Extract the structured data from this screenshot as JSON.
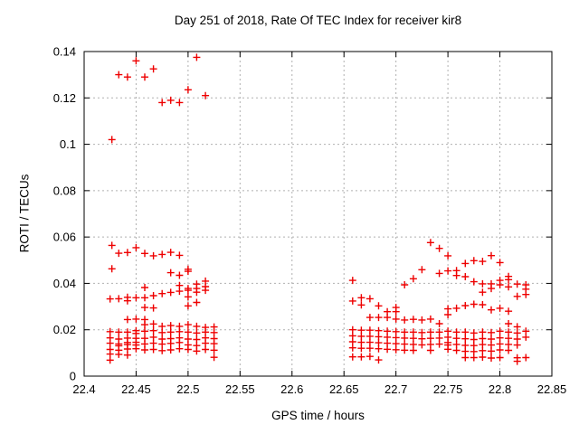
{
  "chart_data": {
    "type": "scatter",
    "title": "Day 251 of 2018, Rate Of TEC Index for receiver kir8",
    "xlabel": "GPS time / hours",
    "ylabel": "ROTI / TECUs",
    "xlim": [
      22.4,
      22.85
    ],
    "ylim": [
      0,
      0.14
    ],
    "grid": true,
    "legend": "none",
    "marker": "plus",
    "marker_color": "#ee0000",
    "x_ticks": [
      {
        "v": 22.4,
        "label": "22.4"
      },
      {
        "v": 22.45,
        "label": "22.45"
      },
      {
        "v": 22.5,
        "label": "22.5"
      },
      {
        "v": 22.55,
        "label": "22.55"
      },
      {
        "v": 22.6,
        "label": "22.6"
      },
      {
        "v": 22.65,
        "label": "22.65"
      },
      {
        "v": 22.7,
        "label": "22.7"
      },
      {
        "v": 22.75,
        "label": "22.75"
      },
      {
        "v": 22.8,
        "label": "22.8"
      },
      {
        "v": 22.85,
        "label": "22.85"
      }
    ],
    "y_ticks": [
      {
        "v": 0,
        "label": "0"
      },
      {
        "v": 0.02,
        "label": "0.02"
      },
      {
        "v": 0.04,
        "label": "0.04"
      },
      {
        "v": 0.06,
        "label": "0.06"
      },
      {
        "v": 0.08,
        "label": "0.08"
      },
      {
        "v": 0.1,
        "label": "0.1"
      },
      {
        "v": 0.12,
        "label": "0.12"
      },
      {
        "v": 0.14,
        "label": "0.14"
      }
    ],
    "series": [
      {
        "name": "ROTI",
        "points": [
          [
            22.425,
            0.0333
          ],
          [
            22.425,
            0.0192
          ],
          [
            22.425,
            0.0165
          ],
          [
            22.425,
            0.0142
          ],
          [
            22.425,
            0.0115
          ],
          [
            22.425,
            0.0095
          ],
          [
            22.425,
            0.0069
          ],
          [
            22.4267,
            0.102
          ],
          [
            22.4267,
            0.0564
          ],
          [
            22.4267,
            0.0463
          ],
          [
            22.4333,
            0.13
          ],
          [
            22.4333,
            0.053
          ],
          [
            22.4333,
            0.0334
          ],
          [
            22.4333,
            0.019
          ],
          [
            22.4333,
            0.016
          ],
          [
            22.4333,
            0.0139
          ],
          [
            22.4333,
            0.0131
          ],
          [
            22.4333,
            0.0112
          ],
          [
            22.4333,
            0.0094
          ],
          [
            22.4417,
            0.129
          ],
          [
            22.4417,
            0.0533
          ],
          [
            22.4417,
            0.034
          ],
          [
            22.4417,
            0.0325
          ],
          [
            22.4417,
            0.0244
          ],
          [
            22.4417,
            0.019
          ],
          [
            22.4417,
            0.0164
          ],
          [
            22.4417,
            0.0145
          ],
          [
            22.4417,
            0.0136
          ],
          [
            22.4417,
            0.0117
          ],
          [
            22.4417,
            0.0091
          ],
          [
            22.45,
            0.136
          ],
          [
            22.45,
            0.0554
          ],
          [
            22.45,
            0.0338
          ],
          [
            22.45,
            0.0246
          ],
          [
            22.45,
            0.0196
          ],
          [
            22.45,
            0.0184
          ],
          [
            22.45,
            0.0163
          ],
          [
            22.45,
            0.0146
          ],
          [
            22.45,
            0.0134
          ],
          [
            22.45,
            0.0118
          ],
          [
            22.4583,
            0.129
          ],
          [
            22.4583,
            0.0529
          ],
          [
            22.4583,
            0.0382
          ],
          [
            22.4583,
            0.0338
          ],
          [
            22.4583,
            0.0296
          ],
          [
            22.4583,
            0.0244
          ],
          [
            22.4583,
            0.0222
          ],
          [
            22.4583,
            0.0194
          ],
          [
            22.4583,
            0.0163
          ],
          [
            22.4583,
            0.0139
          ],
          [
            22.4583,
            0.0113
          ],
          [
            22.4667,
            0.1325
          ],
          [
            22.4667,
            0.0519
          ],
          [
            22.4667,
            0.0347
          ],
          [
            22.4667,
            0.0294
          ],
          [
            22.4667,
            0.0225
          ],
          [
            22.4667,
            0.0196
          ],
          [
            22.4667,
            0.0168
          ],
          [
            22.4667,
            0.0142
          ],
          [
            22.4667,
            0.0115
          ],
          [
            22.475,
            0.118
          ],
          [
            22.475,
            0.0525
          ],
          [
            22.475,
            0.0356
          ],
          [
            22.475,
            0.0215
          ],
          [
            22.475,
            0.0188
          ],
          [
            22.475,
            0.016
          ],
          [
            22.475,
            0.0138
          ],
          [
            22.475,
            0.011
          ],
          [
            22.4833,
            0.119
          ],
          [
            22.4833,
            0.0534
          ],
          [
            22.4833,
            0.0446
          ],
          [
            22.4833,
            0.0361
          ],
          [
            22.4833,
            0.0218
          ],
          [
            22.4833,
            0.019
          ],
          [
            22.4833,
            0.0162
          ],
          [
            22.4833,
            0.0141
          ],
          [
            22.4833,
            0.0113
          ],
          [
            22.4917,
            0.118
          ],
          [
            22.4917,
            0.0521
          ],
          [
            22.4917,
            0.0435
          ],
          [
            22.4917,
            0.0391
          ],
          [
            22.4917,
            0.0366
          ],
          [
            22.4917,
            0.0215
          ],
          [
            22.4917,
            0.0192
          ],
          [
            22.4917,
            0.0165
          ],
          [
            22.4917,
            0.0145
          ],
          [
            22.4917,
            0.0118
          ],
          [
            22.5,
            0.1235
          ],
          [
            22.5,
            0.0461
          ],
          [
            22.5,
            0.0452
          ],
          [
            22.5,
            0.0378
          ],
          [
            22.5,
            0.037
          ],
          [
            22.5,
            0.0342
          ],
          [
            22.5,
            0.0303
          ],
          [
            22.5,
            0.0222
          ],
          [
            22.5,
            0.019
          ],
          [
            22.5,
            0.016
          ],
          [
            22.5,
            0.0135
          ],
          [
            22.5,
            0.0115
          ],
          [
            22.5083,
            0.1375
          ],
          [
            22.5083,
            0.0397
          ],
          [
            22.5083,
            0.0378
          ],
          [
            22.5083,
            0.0362
          ],
          [
            22.5083,
            0.0318
          ],
          [
            22.5083,
            0.0215
          ],
          [
            22.5083,
            0.0186
          ],
          [
            22.5083,
            0.0158
          ],
          [
            22.5083,
            0.0132
          ],
          [
            22.5083,
            0.0108
          ],
          [
            22.5167,
            0.121
          ],
          [
            22.5167,
            0.041
          ],
          [
            22.5167,
            0.0386
          ],
          [
            22.5167,
            0.037
          ],
          [
            22.5167,
            0.021
          ],
          [
            22.5167,
            0.019
          ],
          [
            22.5167,
            0.0165
          ],
          [
            22.5167,
            0.0142
          ],
          [
            22.5167,
            0.0115
          ],
          [
            22.525,
            0.0212
          ],
          [
            22.525,
            0.0188
          ],
          [
            22.525,
            0.0162
          ],
          [
            22.525,
            0.014
          ],
          [
            22.525,
            0.0112
          ],
          [
            22.525,
            0.0081
          ],
          [
            22.6583,
            0.0413
          ],
          [
            22.6583,
            0.0324
          ],
          [
            22.6583,
            0.02
          ],
          [
            22.6583,
            0.0174
          ],
          [
            22.6583,
            0.0148
          ],
          [
            22.6583,
            0.0122
          ],
          [
            22.6583,
            0.0083
          ],
          [
            22.6667,
            0.0338
          ],
          [
            22.6667,
            0.0307
          ],
          [
            22.6667,
            0.0198
          ],
          [
            22.6667,
            0.0172
          ],
          [
            22.6667,
            0.0146
          ],
          [
            22.6667,
            0.012
          ],
          [
            22.6667,
            0.0083
          ],
          [
            22.675,
            0.0334
          ],
          [
            22.675,
            0.0253
          ],
          [
            22.675,
            0.0198
          ],
          [
            22.675,
            0.0172
          ],
          [
            22.675,
            0.0146
          ],
          [
            22.675,
            0.012
          ],
          [
            22.675,
            0.0085
          ],
          [
            22.6833,
            0.0303
          ],
          [
            22.6833,
            0.0253
          ],
          [
            22.6833,
            0.0196
          ],
          [
            22.6833,
            0.017
          ],
          [
            22.6833,
            0.0144
          ],
          [
            22.6833,
            0.0118
          ],
          [
            22.6833,
            0.007
          ],
          [
            22.6917,
            0.0278
          ],
          [
            22.6917,
            0.0253
          ],
          [
            22.6917,
            0.0194
          ],
          [
            22.6917,
            0.0168
          ],
          [
            22.6917,
            0.0142
          ],
          [
            22.6917,
            0.0116
          ],
          [
            22.7,
            0.0296
          ],
          [
            22.7,
            0.0278
          ],
          [
            22.7,
            0.0246
          ],
          [
            22.7,
            0.0192
          ],
          [
            22.7,
            0.0166
          ],
          [
            22.7,
            0.014
          ],
          [
            22.7,
            0.0114
          ],
          [
            22.7083,
            0.0394
          ],
          [
            22.7083,
            0.0242
          ],
          [
            22.7083,
            0.019
          ],
          [
            22.7083,
            0.0164
          ],
          [
            22.7083,
            0.0138
          ],
          [
            22.7083,
            0.0112
          ],
          [
            22.7167,
            0.042
          ],
          [
            22.7167,
            0.0245
          ],
          [
            22.7167,
            0.019
          ],
          [
            22.7167,
            0.0163
          ],
          [
            22.7167,
            0.0137
          ],
          [
            22.7167,
            0.0111
          ],
          [
            22.725,
            0.0459
          ],
          [
            22.725,
            0.0242
          ],
          [
            22.725,
            0.0188
          ],
          [
            22.725,
            0.0161
          ],
          [
            22.725,
            0.0135
          ],
          [
            22.7333,
            0.0576
          ],
          [
            22.7333,
            0.0246
          ],
          [
            22.7333,
            0.019
          ],
          [
            22.7333,
            0.0163
          ],
          [
            22.7333,
            0.0137
          ],
          [
            22.7333,
            0.0111
          ],
          [
            22.7417,
            0.0551
          ],
          [
            22.7417,
            0.0443
          ],
          [
            22.7417,
            0.0226
          ],
          [
            22.7417,
            0.019
          ],
          [
            22.7417,
            0.0164
          ],
          [
            22.7417,
            0.0138
          ],
          [
            22.75,
            0.0519
          ],
          [
            22.75,
            0.0454
          ],
          [
            22.75,
            0.029
          ],
          [
            22.75,
            0.0265
          ],
          [
            22.75,
            0.0194
          ],
          [
            22.75,
            0.0168
          ],
          [
            22.75,
            0.0145
          ],
          [
            22.75,
            0.0134
          ],
          [
            22.75,
            0.0116
          ],
          [
            22.7583,
            0.0455
          ],
          [
            22.7583,
            0.0434
          ],
          [
            22.7583,
            0.0293
          ],
          [
            22.7583,
            0.019
          ],
          [
            22.7583,
            0.0163
          ],
          [
            22.7583,
            0.0137
          ],
          [
            22.7583,
            0.0111
          ],
          [
            22.7667,
            0.0486
          ],
          [
            22.7667,
            0.0429
          ],
          [
            22.7667,
            0.0304
          ],
          [
            22.7667,
            0.019
          ],
          [
            22.7667,
            0.0161
          ],
          [
            22.7667,
            0.0133
          ],
          [
            22.7667,
            0.0107
          ],
          [
            22.7667,
            0.008
          ],
          [
            22.775,
            0.0498
          ],
          [
            22.775,
            0.0407
          ],
          [
            22.775,
            0.031
          ],
          [
            22.775,
            0.0186
          ],
          [
            22.775,
            0.0158
          ],
          [
            22.775,
            0.0132
          ],
          [
            22.775,
            0.0106
          ],
          [
            22.775,
            0.008
          ],
          [
            22.7833,
            0.0495
          ],
          [
            22.7833,
            0.0398
          ],
          [
            22.7833,
            0.0362
          ],
          [
            22.7833,
            0.0308
          ],
          [
            22.7833,
            0.019
          ],
          [
            22.7833,
            0.0162
          ],
          [
            22.7833,
            0.0136
          ],
          [
            22.7833,
            0.011
          ],
          [
            22.7833,
            0.0082
          ],
          [
            22.7917,
            0.052
          ],
          [
            22.7917,
            0.0398
          ],
          [
            22.7917,
            0.0378
          ],
          [
            22.7917,
            0.0286
          ],
          [
            22.7917,
            0.0188
          ],
          [
            22.7917,
            0.016
          ],
          [
            22.7917,
            0.0134
          ],
          [
            22.7917,
            0.0108
          ],
          [
            22.7917,
            0.0078
          ],
          [
            22.8,
            0.049
          ],
          [
            22.8,
            0.0413
          ],
          [
            22.8,
            0.0394
          ],
          [
            22.8,
            0.0293
          ],
          [
            22.8,
            0.0194
          ],
          [
            22.8,
            0.0165
          ],
          [
            22.8,
            0.0139
          ],
          [
            22.8,
            0.0113
          ],
          [
            22.8,
            0.008
          ],
          [
            22.8083,
            0.043
          ],
          [
            22.8083,
            0.0416
          ],
          [
            22.8083,
            0.0385
          ],
          [
            22.8083,
            0.028
          ],
          [
            22.8083,
            0.0226
          ],
          [
            22.8083,
            0.019
          ],
          [
            22.8083,
            0.0163
          ],
          [
            22.8083,
            0.0137
          ],
          [
            22.8083,
            0.0111
          ],
          [
            22.8167,
            0.0397
          ],
          [
            22.8167,
            0.0344
          ],
          [
            22.8167,
            0.0213
          ],
          [
            22.8167,
            0.0186
          ],
          [
            22.8167,
            0.016
          ],
          [
            22.8167,
            0.0134
          ],
          [
            22.8167,
            0.0079
          ],
          [
            22.8167,
            0.0064
          ],
          [
            22.825,
            0.0394
          ],
          [
            22.825,
            0.0375
          ],
          [
            22.825,
            0.0352
          ],
          [
            22.825,
            0.0194
          ],
          [
            22.825,
            0.0168
          ],
          [
            22.825,
            0.008
          ]
        ]
      }
    ]
  }
}
